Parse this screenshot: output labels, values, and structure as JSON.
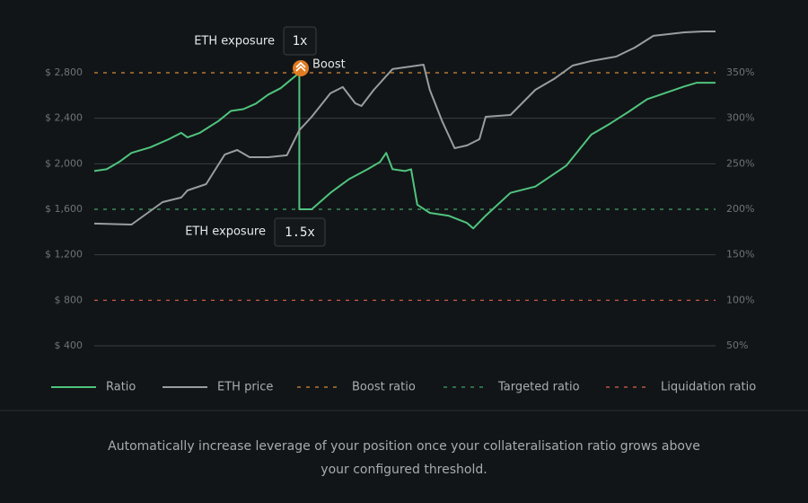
{
  "chart_data": {
    "type": "line",
    "x_values_note_free": null,
    "xlim": [
      0,
      100
    ],
    "ylim": [
      400,
      3200
    ],
    "yticks": [
      {
        "value": 400,
        "label": "$ 400"
      },
      {
        "value": 800,
        "label": "$ 800"
      },
      {
        "value": 1200,
        "label": "$ 1,200"
      },
      {
        "value": 1600,
        "label": "$ 1,600"
      },
      {
        "value": 2000,
        "label": "$ 2,000"
      },
      {
        "value": 2400,
        "label": "$ 2,400"
      },
      {
        "value": 2800,
        "label": "$ 2,800"
      }
    ],
    "y2lim": [
      50,
      400
    ],
    "y2ticks": [
      {
        "value": 50,
        "label": "50%"
      },
      {
        "value": 100,
        "label": "100%"
      },
      {
        "value": 150,
        "label": "150%"
      },
      {
        "value": 200,
        "label": "200%"
      },
      {
        "value": 250,
        "label": "250%"
      },
      {
        "value": 300,
        "label": "300%"
      },
      {
        "value": 350,
        "label": "350%"
      }
    ],
    "grid": true,
    "series": [
      {
        "name": "Ratio",
        "color": "#4fc47e",
        "axis": "y2",
        "x": [
          0,
          2,
          4,
          6,
          9,
          12,
          14,
          15,
          17,
          20,
          22,
          24,
          26,
          28,
          30,
          33,
          33,
          35,
          38,
          41,
          44,
          46,
          47,
          48,
          50,
          51,
          52,
          54,
          57,
          60,
          61,
          63,
          67,
          71,
          76,
          80,
          83,
          86,
          89,
          92,
          95,
          97,
          100
        ],
        "values": [
          242,
          244,
          252,
          262,
          268,
          277,
          284,
          279,
          284,
          297,
          308,
          310,
          316,
          326,
          333,
          350,
          200,
          200,
          218,
          233,
          244,
          252,
          262,
          244,
          242,
          244,
          205,
          196,
          193,
          185,
          179,
          193,
          218,
          225,
          248,
          282,
          294,
          307,
          321,
          328,
          335,
          339,
          339
        ]
      },
      {
        "name": "ETH price",
        "color": "#9a9d9f",
        "x": [
          0,
          6,
          9,
          11,
          14,
          15,
          18,
          21,
          23,
          25,
          28,
          31,
          33,
          35,
          38,
          40,
          42,
          43,
          45,
          48,
          53,
          54,
          56,
          58,
          60,
          62,
          63,
          67,
          71,
          74,
          77,
          80,
          84,
          87,
          90,
          95,
          98,
          100
        ],
        "values": [
          1474,
          1466,
          1584,
          1663,
          1703,
          1766,
          1821,
          2081,
          2121,
          2058,
          2058,
          2074,
          2295,
          2413,
          2619,
          2674,
          2532,
          2508,
          2650,
          2832,
          2871,
          2650,
          2374,
          2137,
          2161,
          2216,
          2413,
          2429,
          2650,
          2745,
          2863,
          2903,
          2942,
          3021,
          3124,
          3155,
          3163,
          3163
        ]
      }
    ],
    "reference_lines": [
      {
        "name": "Boost ratio",
        "color": "#d58a3a",
        "axis": "y2",
        "value": 350
      },
      {
        "name": "Targeted ratio",
        "color": "#3fa46a",
        "axis": "y2",
        "value": 200
      },
      {
        "name": "Liquidation ratio",
        "color": "#d9654a",
        "axis": "y2",
        "value": 100
      }
    ],
    "annotations": [
      {
        "label": "ETH exposure",
        "value": "1x"
      },
      {
        "label": "Boost"
      },
      {
        "label": "ETH exposure",
        "value": "1.5x"
      }
    ]
  },
  "caption": [
    "Automatically increase leverage of your position once your collateralisation ratio grows above",
    "your configured threshold."
  ]
}
